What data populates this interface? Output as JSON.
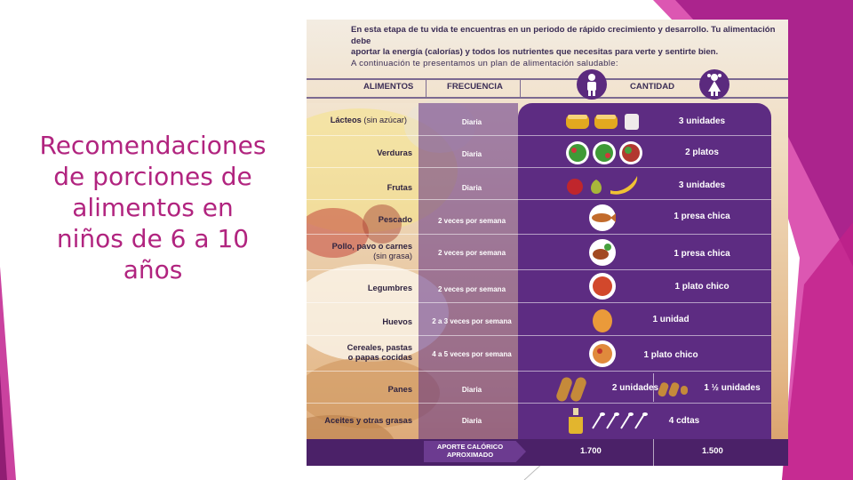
{
  "slide": {
    "title": "Recomendaciones\nde porciones de\nalimentos en\nniños de 6 a 10\naños"
  },
  "intro": {
    "line1": "En esta etapa de tu vida te encuentras en un periodo de rápido crecimiento y desarrollo. Tu alimentación debe",
    "line2": "aportar la energía (calorías) y todos los nutrientes que necesitas para verte y sentirte bien.",
    "line3": "A continuación te presentamos un plan de alimentación saludable:"
  },
  "table": {
    "headers": {
      "food": "ALIMENTOS",
      "frequency": "FRECUENCIA",
      "quantity": "CANTIDAD"
    },
    "rows": [
      {
        "food": "Lácteos",
        "food_note": "(sin azúcar)",
        "frequency": "Diaria",
        "quantity": "3 unidades"
      },
      {
        "food": "Verduras",
        "frequency": "Diaria",
        "quantity": "2 platos"
      },
      {
        "food": "Frutas",
        "frequency": "Diaria",
        "quantity": "3 unidades"
      },
      {
        "food": "Pescado",
        "frequency": "2 veces por semana",
        "quantity": "1 presa chica"
      },
      {
        "food": "Pollo, pavo o carnes",
        "food_note": "(sin grasa)",
        "frequency": "2 veces por semana",
        "quantity": "1 presa chica"
      },
      {
        "food": "Legumbres",
        "frequency": "2 veces por semana",
        "quantity": "1 plato chico"
      },
      {
        "food": "Huevos",
        "frequency": "2 a 3 veces por semana",
        "quantity": "1 unidad"
      },
      {
        "food": "Cereales, pastas",
        "food_note": "o papas cocidas",
        "frequency": "4 a 5 veces por semana",
        "quantity": "1 plato chico"
      },
      {
        "food": "Panes",
        "frequency": "Diaria",
        "quantity_boy": "2 unidades",
        "quantity_girl": "1 ½ unidades"
      },
      {
        "food": "Aceites y otras grasas",
        "frequency": "Diaria",
        "quantity": "4 cdtas"
      }
    ],
    "footer": {
      "label_line1": "APORTE CALÓRICO",
      "label_line2": "APROXIMADO",
      "boy": "1.700",
      "girl": "1.500"
    }
  },
  "icons": [
    "boy-figure-icon",
    "girl-figure-icon",
    "milk-cup-icon",
    "lettuce-plate-icon",
    "fruit-icon",
    "fish-plate-icon",
    "meat-plate-icon",
    "lentil-plate-icon",
    "egg-icon",
    "pasta-plate-icon",
    "bread-icon",
    "oil-bottle-icon",
    "spoon-icon"
  ],
  "colors": {
    "title": "#b1247f",
    "panel_purple": "#5d2c82",
    "accent_magenta": "#c2228f"
  }
}
